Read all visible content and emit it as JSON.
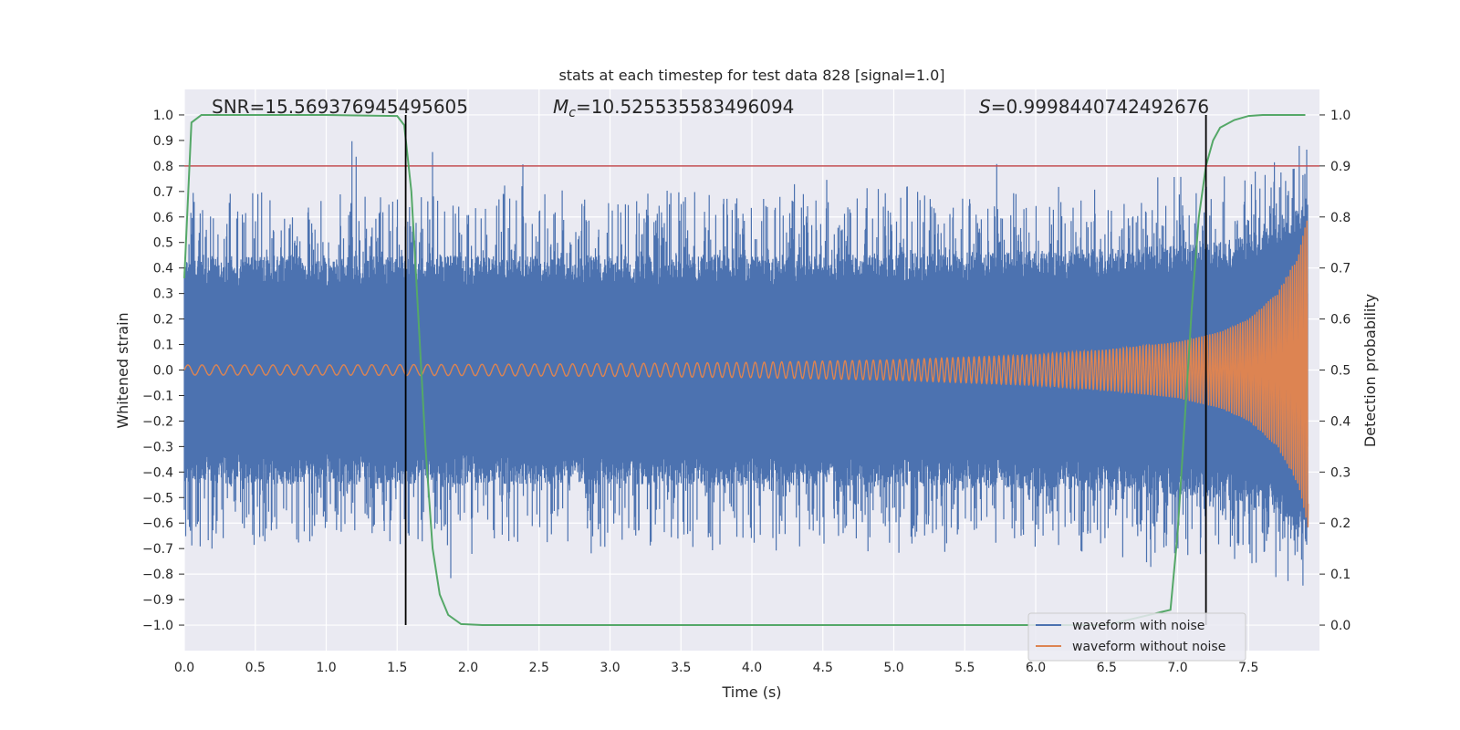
{
  "chart_data": {
    "type": "line",
    "title": "stats at each timestep for test data 828 [signal=1.0]",
    "xlabel": "Time (s)",
    "ylabel": "Whitened strain",
    "y2label": "Detection probability",
    "xlim": [
      0.0,
      8.0
    ],
    "ylim": [
      -1.1,
      1.1
    ],
    "y2lim": [
      -0.05,
      1.05
    ],
    "xticks": [
      "0.0",
      "0.5",
      "1.0",
      "1.5",
      "2.0",
      "2.5",
      "3.0",
      "3.5",
      "4.0",
      "4.5",
      "5.0",
      "5.5",
      "6.0",
      "6.5",
      "7.0",
      "7.5"
    ],
    "yticks": [
      "−1.0",
      "−0.9",
      "−0.8",
      "−0.7",
      "−0.6",
      "−0.5",
      "−0.4",
      "−0.3",
      "−0.2",
      "−0.1",
      "0.0",
      "0.1",
      "0.2",
      "0.3",
      "0.4",
      "0.5",
      "0.6",
      "0.7",
      "0.8",
      "0.9",
      "1.0"
    ],
    "y2ticks": [
      "0.0",
      "0.1",
      "0.2",
      "0.3",
      "0.4",
      "0.5",
      "0.6",
      "0.7",
      "0.8",
      "0.9",
      "1.0"
    ],
    "grid": true,
    "legend_position": "lower-right",
    "annotations": {
      "snr": "SNR=15.569376945495605",
      "mc": "=10.525535583496094",
      "mc_symbol": "M",
      "mc_subscript": "c",
      "s": "=0.9998440742492676",
      "s_symbol": "S"
    },
    "series": [
      {
        "name": "waveform with noise",
        "color": "#4c72b0",
        "axis": "left",
        "description_amplitude_core": 0.4,
        "peak_max": 1.0
      },
      {
        "name": "waveform without noise",
        "color": "#dd8452",
        "axis": "left",
        "envelope": {
          "t": [
            0.0,
            1.0,
            2.0,
            3.0,
            4.0,
            5.0,
            6.0,
            6.5,
            7.0,
            7.3,
            7.5,
            7.7,
            7.85,
            7.92
          ],
          "amp": [
            0.02,
            0.02,
            0.022,
            0.025,
            0.03,
            0.04,
            0.06,
            0.08,
            0.11,
            0.15,
            0.2,
            0.3,
            0.45,
            0.62
          ]
        }
      },
      {
        "name": "detection probability",
        "color": "#55a868",
        "axis": "right",
        "t": [
          0.0,
          0.05,
          0.12,
          0.3,
          1.0,
          1.5,
          1.55,
          1.6,
          1.65,
          1.7,
          1.75,
          1.8,
          1.86,
          1.95,
          2.1,
          5.0,
          6.5,
          6.95,
          7.0,
          7.05,
          7.1,
          7.15,
          7.2,
          7.25,
          7.3,
          7.4,
          7.5,
          7.6,
          7.9
        ],
        "p": [
          0.68,
          0.985,
          1.0,
          1.0,
          1.0,
          0.998,
          0.98,
          0.85,
          0.6,
          0.35,
          0.15,
          0.06,
          0.02,
          0.002,
          0.0,
          0.0,
          0.0,
          0.03,
          0.18,
          0.4,
          0.62,
          0.8,
          0.9,
          0.95,
          0.975,
          0.99,
          0.998,
          1.0,
          1.0
        ]
      }
    ],
    "threshold_line": {
      "axis": "right",
      "value": 0.9,
      "color": "#c44e52"
    },
    "vertical_lines": [
      1.56,
      7.2
    ]
  }
}
